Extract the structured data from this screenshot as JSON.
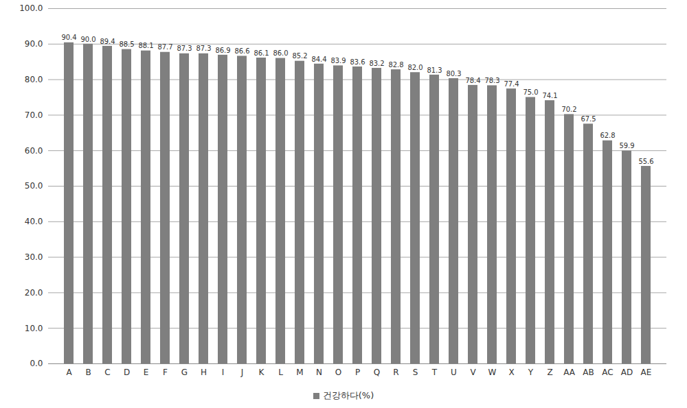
{
  "chart_data": {
    "type": "bar",
    "categories": [
      "A",
      "B",
      "C",
      "D",
      "E",
      "F",
      "G",
      "H",
      "I",
      "J",
      "K",
      "L",
      "M",
      "N",
      "O",
      "P",
      "Q",
      "R",
      "S",
      "T",
      "U",
      "V",
      "W",
      "X",
      "Y",
      "Z",
      "AA",
      "AB",
      "AC",
      "AD",
      "AE"
    ],
    "series": [
      {
        "name": "건강하다(%)",
        "color": "#7f7f7f",
        "values": [
          90.4,
          90.0,
          89.4,
          88.5,
          88.1,
          87.7,
          87.3,
          87.3,
          86.9,
          86.6,
          86.1,
          86.0,
          85.2,
          84.4,
          83.9,
          83.6,
          83.2,
          82.8,
          82.0,
          81.3,
          80.3,
          78.4,
          78.3,
          77.4,
          75.0,
          74.1,
          70.2,
          67.5,
          62.8,
          59.9,
          55.6
        ],
        "value_labels": [
          "90.4",
          "90.0",
          "89.4",
          "88.5",
          "88.1",
          "87.7",
          "87.3",
          "87.3",
          "86.9",
          "86.6",
          "86.1",
          "86.0",
          "85.2",
          "84.4",
          "83.9",
          "83.6",
          "83.2",
          "82.8",
          "82.0",
          "81.3",
          "80.3",
          "78.4",
          "78.3",
          "77.4",
          "75.0",
          "74.1",
          "70.2",
          "67.5",
          "62.8",
          "59.9",
          "55.6"
        ]
      }
    ],
    "ylim": [
      0,
      100
    ],
    "yticks": [
      {
        "value": 0,
        "label": "0.0"
      },
      {
        "value": 10,
        "label": "10.0"
      },
      {
        "value": 20,
        "label": "20.0"
      },
      {
        "value": 30,
        "label": "30.0"
      },
      {
        "value": 40,
        "label": "40.0"
      },
      {
        "value": 50,
        "label": "50.0"
      },
      {
        "value": 60,
        "label": "60.0"
      },
      {
        "value": 70,
        "label": "70.0"
      },
      {
        "value": 80,
        "label": "80.0"
      },
      {
        "value": 90,
        "label": "90.0"
      },
      {
        "value": 100,
        "label": "100.0"
      }
    ],
    "grid": true,
    "legend": "bottom",
    "data_labels": true
  }
}
